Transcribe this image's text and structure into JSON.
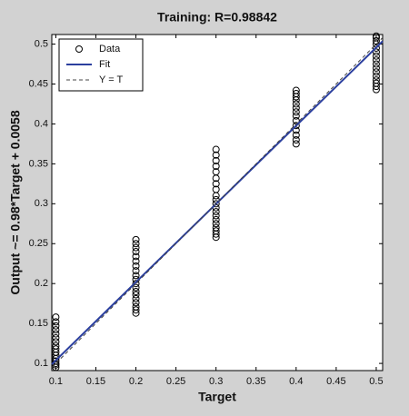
{
  "chart_data": {
    "type": "scatter",
    "title": "Training: R=0.98842",
    "xlabel": "Target",
    "ylabel": "Output ~= 0.98*Target + 0.0058",
    "xlim": [
      0.095,
      0.508
    ],
    "ylim": [
      0.091,
      0.512
    ],
    "xticks": [
      0.1,
      0.15,
      0.2,
      0.25,
      0.3,
      0.35,
      0.4,
      0.45,
      0.5
    ],
    "yticks": [
      0.1,
      0.15,
      0.2,
      0.25,
      0.3,
      0.35,
      0.4,
      0.45,
      0.5
    ],
    "legend": "northwest",
    "series": [
      {
        "name": "Data",
        "color": "#000000",
        "style": "circle",
        "x": [
          0.1,
          0.1,
          0.1,
          0.1,
          0.1,
          0.1,
          0.1,
          0.1,
          0.1,
          0.1,
          0.1,
          0.1,
          0.1,
          0.1,
          0.1,
          0.1,
          0.2,
          0.2,
          0.2,
          0.2,
          0.2,
          0.2,
          0.2,
          0.2,
          0.2,
          0.2,
          0.2,
          0.2,
          0.2,
          0.2,
          0.2,
          0.2,
          0.2,
          0.2,
          0.2,
          0.3,
          0.3,
          0.3,
          0.3,
          0.3,
          0.3,
          0.3,
          0.3,
          0.3,
          0.3,
          0.3,
          0.3,
          0.3,
          0.3,
          0.3,
          0.3,
          0.3,
          0.3,
          0.3,
          0.3,
          0.4,
          0.4,
          0.4,
          0.4,
          0.4,
          0.4,
          0.4,
          0.4,
          0.4,
          0.4,
          0.4,
          0.4,
          0.4,
          0.4,
          0.5,
          0.5,
          0.5,
          0.5,
          0.5,
          0.5,
          0.5,
          0.5,
          0.5,
          0.5,
          0.5,
          0.5,
          0.5,
          0.5,
          0.5,
          0.5
        ],
        "values": [
          0.095,
          0.098,
          0.1,
          0.103,
          0.106,
          0.11,
          0.114,
          0.118,
          0.122,
          0.127,
          0.132,
          0.137,
          0.142,
          0.147,
          0.152,
          0.158,
          0.163,
          0.167,
          0.171,
          0.176,
          0.181,
          0.186,
          0.19,
          0.195,
          0.2,
          0.205,
          0.21,
          0.216,
          0.222,
          0.228,
          0.234,
          0.24,
          0.245,
          0.25,
          0.255,
          0.258,
          0.262,
          0.266,
          0.27,
          0.275,
          0.28,
          0.285,
          0.29,
          0.295,
          0.3,
          0.305,
          0.31,
          0.318,
          0.325,
          0.332,
          0.34,
          0.347,
          0.354,
          0.361,
          0.368,
          0.375,
          0.38,
          0.386,
          0.392,
          0.398,
          0.404,
          0.41,
          0.415,
          0.42,
          0.425,
          0.43,
          0.434,
          0.438,
          0.442,
          0.443,
          0.447,
          0.451,
          0.455,
          0.46,
          0.465,
          0.47,
          0.475,
          0.48,
          0.485,
          0.49,
          0.495,
          0.5,
          0.504,
          0.508,
          0.51
        ]
      },
      {
        "name": "Fit",
        "color": "#2b3f9e",
        "style": "solid",
        "x": [
          0.095,
          0.508
        ],
        "values": [
          0.0989,
          0.5036
        ]
      },
      {
        "name": "Y = T",
        "color": "#444444",
        "style": "dashed",
        "x": [
          0.095,
          0.508
        ],
        "values": [
          0.095,
          0.508
        ]
      }
    ]
  }
}
